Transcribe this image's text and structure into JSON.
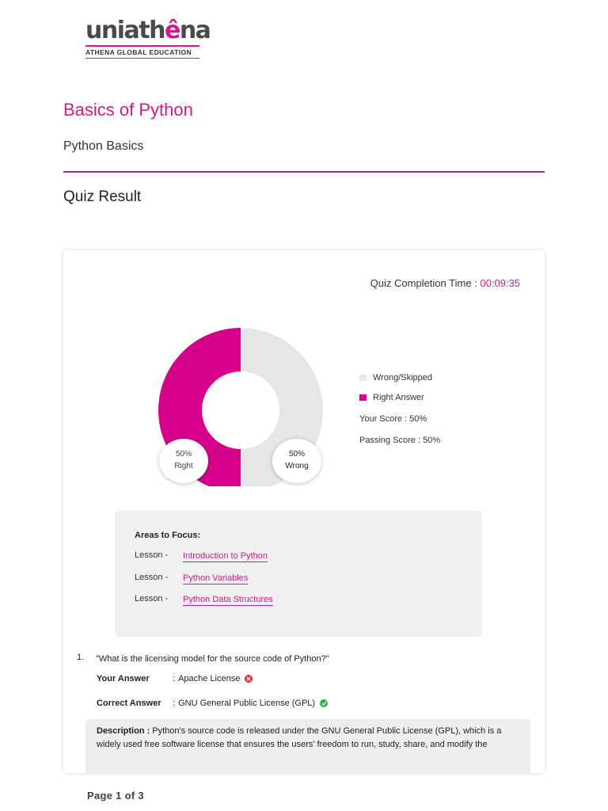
{
  "logo": {
    "word_part1": "uni",
    "word_part2": "ath",
    "word_part3": "ê",
    "word_part4": "na",
    "tagline": "ATHENA GLOBAL EDUCATION"
  },
  "course": {
    "title": "Basics of Python",
    "subtitle": "Python Basics"
  },
  "section_title": "Quiz Result",
  "completion": {
    "label": "Quiz Completion Time : ",
    "value": "00:09:35"
  },
  "chart_data": {
    "type": "pie",
    "donut": true,
    "categories": [
      "Right Answer",
      "Wrong/Skipped"
    ],
    "values": [
      50,
      50
    ],
    "colors": [
      "#d6008b",
      "#e6e6e6"
    ],
    "labels": [
      {
        "percent": "50%",
        "text": "Right"
      },
      {
        "percent": "50%",
        "text": "Wrong"
      }
    ],
    "legend_placement": "right"
  },
  "legend": {
    "items": [
      {
        "label": "Wrong/Skipped",
        "color": "#e9e9e9"
      },
      {
        "label": "Right Answer",
        "color": "#d6008b"
      }
    ],
    "your_score": "Your Score : 50%",
    "passing_score": "Passing Score : 50%"
  },
  "focus": {
    "title": "Areas to Focus:",
    "lessons": [
      {
        "prefix": "Lesson -",
        "name": "Introduction to Python"
      },
      {
        "prefix": "Lesson -",
        "name": "Python Variables"
      },
      {
        "prefix": "Lesson -",
        "name": "Python Data Structures"
      }
    ]
  },
  "question": {
    "number": "1.",
    "text": "\"What is the licensing model for the source code of Python?\"",
    "your_answer_label": "Your Answer",
    "your_answer": "Apache License",
    "correct_answer_label": "Correct Answer",
    "correct_answer": "GNU General Public License (GPL)",
    "colon": ":",
    "description_label": "Description :",
    "description": " Python's source code is released under the GNU General Public License (GPL), which is a widely used free software license that ensures the users' freedom to run, study, share, and modify the"
  },
  "page_number": "Page 1 of 3"
}
